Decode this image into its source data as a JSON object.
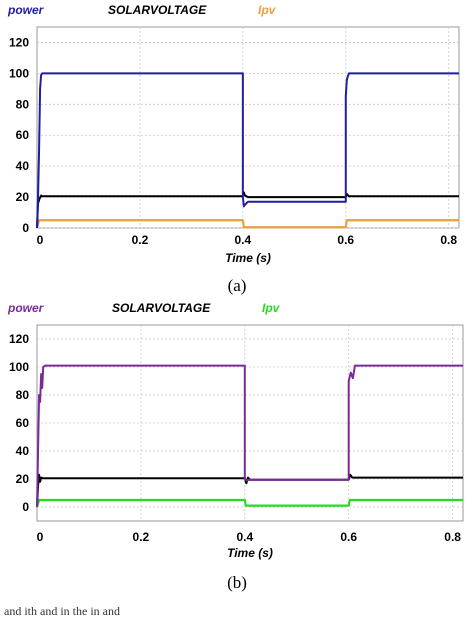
{
  "chart_data": [
    {
      "id": "a",
      "type": "line",
      "caption": "(a)",
      "xlabel": "Time (s)",
      "ylabel": "",
      "xlim": [
        0,
        0.82
      ],
      "ylim": [
        0,
        130
      ],
      "xticks": [
        0,
        0.2,
        0.4,
        0.6,
        0.8
      ],
      "xtick_labels": [
        "0",
        "0.2",
        "0.4",
        "0.6",
        "0.8"
      ],
      "yticks": [
        0,
        20,
        40,
        60,
        80,
        100,
        120
      ],
      "ytick_labels": [
        "0",
        "20",
        "40",
        "60",
        "80",
        "100",
        "120"
      ],
      "grid": true,
      "legend_position": "top-left, above plot",
      "series": [
        {
          "name": "power",
          "color": "#1f1fa0",
          "x": [
            0,
            0.002,
            0.004,
            0.006,
            0.008,
            0.01,
            0.4,
            0.4,
            0.402,
            0.404,
            0.41,
            0.6,
            0.6,
            0.602,
            0.606,
            0.82
          ],
          "y": [
            0,
            20,
            50,
            90,
            99,
            100,
            100,
            20,
            14,
            15,
            17,
            17,
            85,
            96,
            100,
            100
          ]
        },
        {
          "name": "SOLARVOLTAGE",
          "color": "#000000",
          "x": [
            0,
            0.002,
            0.005,
            0.008,
            0.01,
            0.4,
            0.402,
            0.404,
            0.41,
            0.6,
            0.602,
            0.606,
            0.82
          ],
          "y": [
            0,
            16,
            19,
            21,
            20.5,
            20.5,
            23,
            21,
            20,
            20,
            22,
            20.5,
            20.5
          ]
        },
        {
          "name": "Ipv",
          "color": "#e8a040",
          "x": [
            0,
            0.004,
            0.01,
            0.4,
            0.402,
            0.6,
            0.602,
            0.82
          ],
          "y": [
            0,
            5,
            5,
            5,
            0.5,
            0.5,
            5,
            5
          ]
        }
      ]
    },
    {
      "id": "b",
      "type": "line",
      "caption": "(b)",
      "xlabel": "Time (s)",
      "ylabel": "",
      "xlim": [
        0,
        0.82
      ],
      "ylim": [
        -10,
        130
      ],
      "xticks": [
        0,
        0.2,
        0.4,
        0.6,
        0.8
      ],
      "xtick_labels": [
        "0",
        "0.2",
        "0.4",
        "0.6",
        "0.8"
      ],
      "yticks": [
        0,
        20,
        40,
        60,
        80,
        100,
        120
      ],
      "ytick_labels": [
        "0",
        "20",
        "40",
        "60",
        "80",
        "100",
        "120"
      ],
      "grid": true,
      "legend_position": "top-left, above plot",
      "series": [
        {
          "name": "power",
          "color": "#7a2a9a",
          "x": [
            0,
            0.002,
            0.004,
            0.006,
            0.008,
            0.01,
            0.012,
            0.016,
            0.4,
            0.4,
            0.404,
            0.41,
            0.6,
            0.6,
            0.604,
            0.608,
            0.612,
            0.82
          ],
          "y": [
            0,
            40,
            80,
            75,
            95,
            85,
            100,
            101,
            101,
            20,
            19,
            19.5,
            19.5,
            90,
            96,
            92,
            101,
            101
          ]
        },
        {
          "name": "SOLARVOLTAGE",
          "color": "#000000",
          "x": [
            0,
            0.002,
            0.004,
            0.006,
            0.008,
            0.012,
            0.4,
            0.403,
            0.406,
            0.41,
            0.6,
            0.603,
            0.607,
            0.82
          ],
          "y": [
            0,
            15,
            23,
            18,
            21,
            20.5,
            20.5,
            17,
            21,
            19.5,
            19.5,
            23,
            21,
            21
          ]
        },
        {
          "name": "Ipv",
          "color": "#22dd22",
          "x": [
            0,
            0.004,
            0.01,
            0.4,
            0.402,
            0.6,
            0.602,
            0.82
          ],
          "y": [
            0,
            5,
            5,
            5,
            1,
            1,
            5,
            5
          ]
        }
      ]
    }
  ],
  "footer_text": "and  ith         and             in     the  in    and        "
}
